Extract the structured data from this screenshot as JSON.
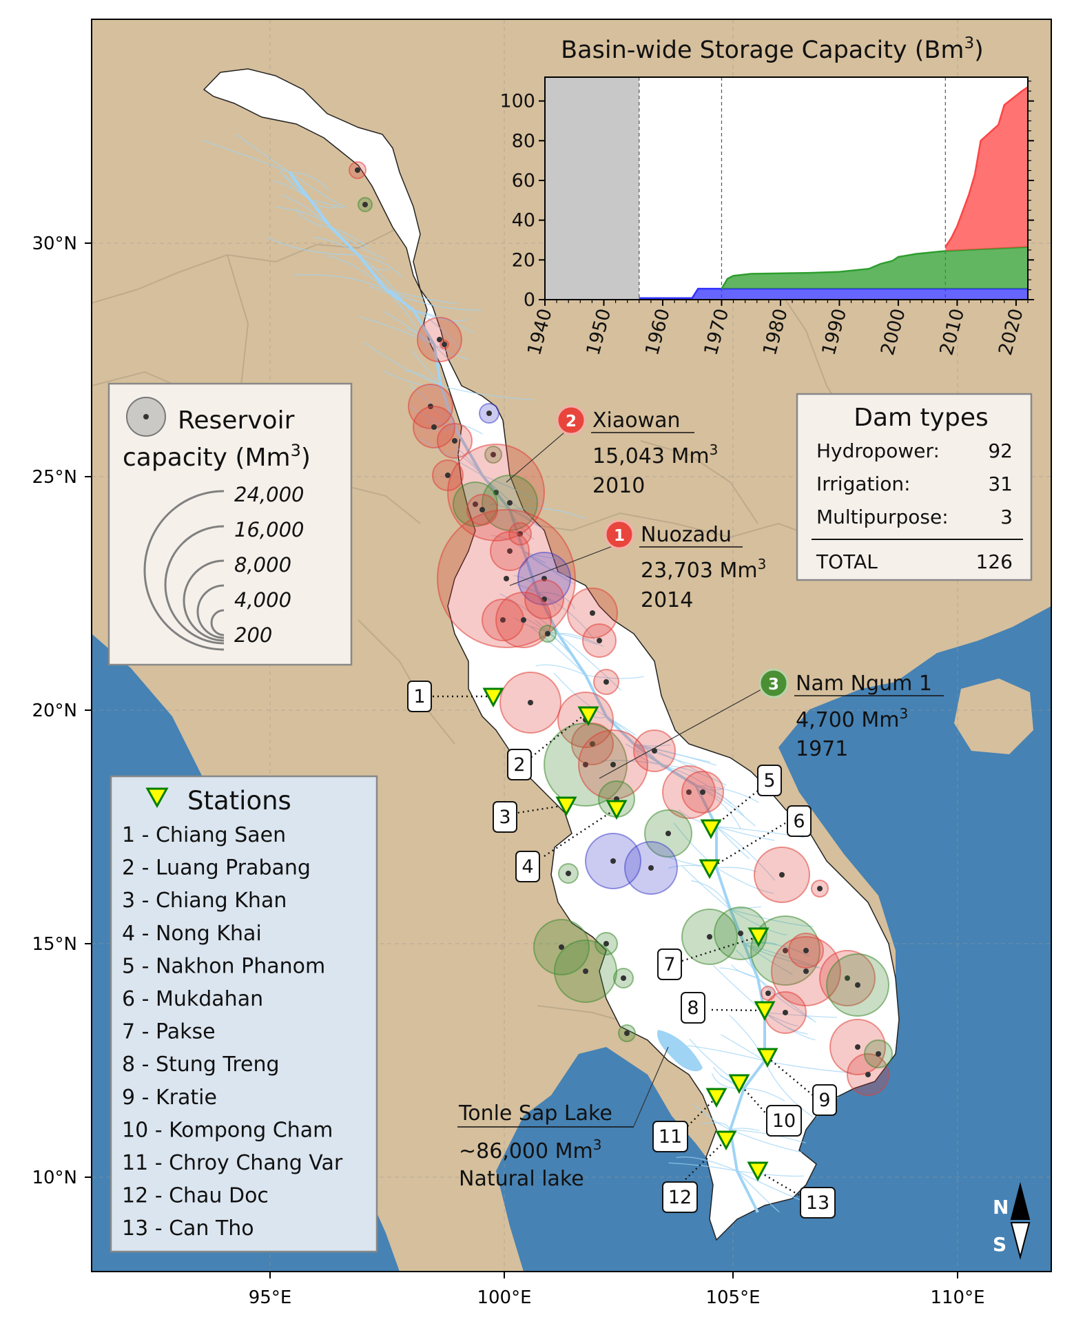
{
  "map": {
    "colors": {
      "land": "#d6bf9c",
      "sea": "#4682b4",
      "basin": "#ffffff",
      "river": "#9fd4f5",
      "hydro": "#e0403a",
      "irrigation": "#3e8a30",
      "multipurpose": "#4444cc",
      "station": "#ffff00",
      "station_edge": "#008000"
    },
    "lon_ticks": [
      "95°E",
      "100°E",
      "105°E",
      "110°E"
    ],
    "lat_ticks": [
      "30°N",
      "25°N",
      "20°N",
      "15°N",
      "10°N"
    ],
    "north_label": "N",
    "south_label": "S",
    "reservoir_legend": {
      "title_line1": "Reservoir",
      "title_line2": "capacity (Mm",
      "title_sup": "3",
      "title_close": ")",
      "values": [
        "24,000",
        "16,000",
        "8,000",
        "4,000",
        "200"
      ]
    },
    "stations_legend": {
      "title": "Stations",
      "items": [
        "1 - Chiang Saen",
        "2 - Luang Prabang",
        "3 - Chiang Khan",
        "4 - Nong Khai",
        "5 - Nakhon Phanom",
        "6 - Mukdahan",
        "7 - Pakse",
        "8 - Stung Treng",
        "9 - Kratie",
        "10 - Kompong Cham",
        "11 - Chroy Chang Var",
        "12 - Chau Doc",
        "13 - Can Tho"
      ]
    },
    "dam_types": {
      "title": "Dam types",
      "rows": [
        {
          "label": "Hydropower:",
          "value": "92"
        },
        {
          "label": "Irrigation:",
          "value": "31"
        },
        {
          "label": "Multipurpose:",
          "value": "3"
        }
      ],
      "total_label": "TOTAL",
      "total_value": "126"
    },
    "annotations": [
      {
        "rank": "2",
        "name": "Xiaowan",
        "capacity": "15,043 Mm",
        "sup": "3",
        "year": "2010"
      },
      {
        "rank": "1",
        "name": "Nuozadu",
        "capacity": "23,703 Mm",
        "sup": "3",
        "year": "2014"
      },
      {
        "rank": "3",
        "name": "Nam Ngum 1",
        "capacity": "4,700 Mm",
        "sup": "3",
        "year": "1971"
      }
    ],
    "tonle_sap": {
      "name": "Tonle Sap Lake",
      "capacity": "~86,000 Mm",
      "sup": "3",
      "note": "Natural lake"
    },
    "station_numbers": [
      "1",
      "2",
      "3",
      "4",
      "5",
      "6",
      "7",
      "8",
      "9",
      "10",
      "11",
      "12",
      "13"
    ]
  },
  "chart_data": {
    "type": "area",
    "title": "Basin-wide Storage Capacity (Bm",
    "title_sup": "3",
    "title_close": ")",
    "xlim": [
      1940,
      2022
    ],
    "ylim": [
      0,
      112
    ],
    "x_ticks": [
      "1940",
      "1950",
      "1960",
      "1970",
      "1980",
      "1990",
      "2000",
      "2010",
      "2020"
    ],
    "y_ticks": [
      "0",
      "20",
      "40",
      "60",
      "80",
      "100"
    ],
    "shaded_range": [
      1940,
      1956
    ],
    "reference_lines": [
      1956,
      1970,
      2008
    ],
    "series": [
      {
        "color": "#3333ff",
        "x": [
          1956,
          1965,
          1966,
          2022
        ],
        "y": [
          0.8,
          0.8,
          5.5,
          5.5
        ]
      },
      {
        "color": "#2e9e2e",
        "x": [
          1970,
          1971,
          1972,
          1975,
          1985,
          1990,
          1995,
          1997,
          1999,
          2000,
          2001,
          2002,
          2003,
          2008,
          2022
        ],
        "y": [
          5.5,
          10.5,
          12,
          13,
          13.5,
          14,
          15.5,
          18,
          19.5,
          21.5,
          22,
          22.5,
          23,
          24.5,
          26.5
        ]
      },
      {
        "color": "#ff4444",
        "x": [
          2008,
          2009,
          2010,
          2012,
          2013,
          2014,
          2017,
          2018,
          2021,
          2022
        ],
        "y": [
          26.5,
          31,
          37,
          53,
          63,
          80,
          88,
          98,
          105,
          107
        ]
      }
    ]
  }
}
